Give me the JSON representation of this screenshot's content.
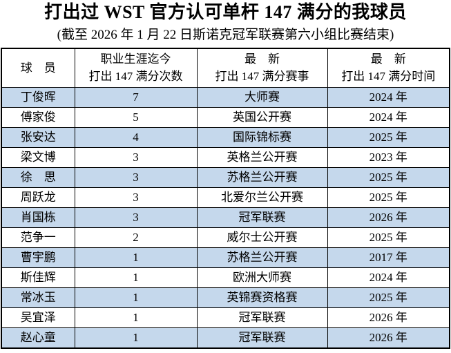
{
  "title": "打出过 WST 官方认可单杆 147 满分的我球员",
  "subtitle": "(截至 2026 年 1 月 22 日斯诺克冠军联赛第六小组比赛结束)",
  "colors": {
    "row_highlight": "#C5D8EC",
    "border": "#000000",
    "text": "#000000",
    "background": "#ffffff"
  },
  "table": {
    "headers": [
      {
        "line1": "球　员",
        "line2": ""
      },
      {
        "line1": "职业生涯迄今",
        "line2": "打出 147 满分次数"
      },
      {
        "line1": "最　新",
        "line2": "打出 147 满分赛事"
      },
      {
        "line1": "最　新",
        "line2": "打出 147 满分时间"
      }
    ],
    "rows": [
      {
        "player": "丁俊晖",
        "count": "7",
        "event": "大师赛",
        "year": "2024 年"
      },
      {
        "player": "傅家俊",
        "count": "5",
        "event": "英国公开赛",
        "year": "2024 年"
      },
      {
        "player": "张安达",
        "count": "4",
        "event": "国际锦标赛",
        "year": "2025 年"
      },
      {
        "player": "梁文博",
        "count": "3",
        "event": "英格兰公开赛",
        "year": "2023 年"
      },
      {
        "player": "徐　思",
        "count": "3",
        "event": "苏格兰公开赛",
        "year": "2025 年"
      },
      {
        "player": "周跃龙",
        "count": "3",
        "event": "北爱尔兰公开赛",
        "year": "2025 年"
      },
      {
        "player": "肖国栋",
        "count": "3",
        "event": "冠军联赛",
        "year": "2026 年"
      },
      {
        "player": "范争一",
        "count": "2",
        "event": "威尔士公开赛",
        "year": "2025 年"
      },
      {
        "player": "曹宇鹏",
        "count": "1",
        "event": "苏格兰公开赛",
        "year": "2017 年"
      },
      {
        "player": "斯佳辉",
        "count": "1",
        "event": "欧洲大师赛",
        "year": "2024 年"
      },
      {
        "player": "常冰玉",
        "count": "1",
        "event": "英锦赛资格赛",
        "year": "2025 年"
      },
      {
        "player": "吴宜泽",
        "count": "1",
        "event": "冠军联赛",
        "year": "2026 年"
      },
      {
        "player": "赵心童",
        "count": "1",
        "event": "冠军联赛",
        "year": "2026 年"
      }
    ]
  }
}
